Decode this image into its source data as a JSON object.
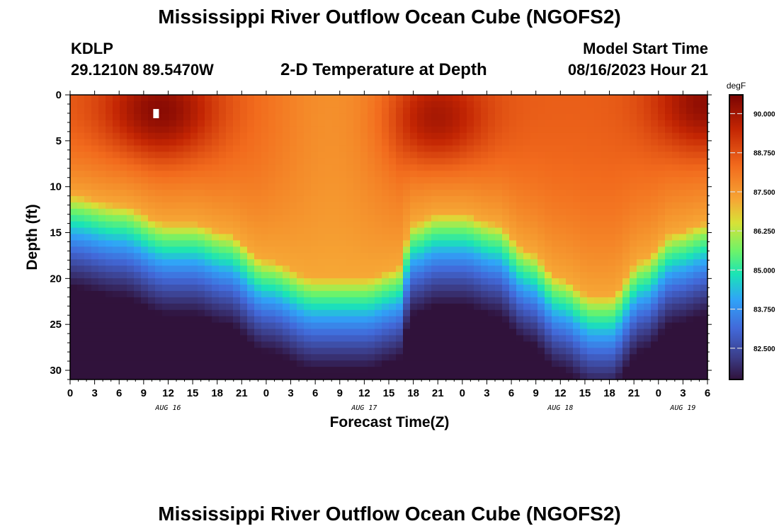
{
  "page": {
    "title": "Mississippi River Outflow Ocean Cube (NGOFS2)",
    "second_title": "Mississippi River Outflow Ocean Cube (NGOFS2)"
  },
  "header": {
    "station": "KDLP",
    "coords": "29.1210N  89.5470W",
    "plot_title": "2-D Temperature at Depth",
    "model_start_label": "Model Start Time",
    "model_start_value": "08/16/2023 Hour 21"
  },
  "chart_data": {
    "type": "heatmap",
    "title": "2-D Temperature at Depth",
    "xlabel": "Forecast Time(Z)",
    "ylabel": "Depth (ft)",
    "x_range_hours": [
      0,
      78
    ],
    "x_tick_labels": [
      "0",
      "3",
      "6",
      "9",
      "12",
      "15",
      "18",
      "21",
      "0",
      "3",
      "6",
      "9",
      "12",
      "15",
      "18",
      "21",
      "0",
      "3",
      "6",
      "9",
      "12",
      "15",
      "18",
      "21",
      "0",
      "3",
      "6"
    ],
    "date_labels": [
      {
        "label": "AUG 16",
        "hour": 12
      },
      {
        "label": "AUG 17",
        "hour": 36
      },
      {
        "label": "AUG 18",
        "hour": 60
      },
      {
        "label": "AUG 19",
        "hour": 75
      }
    ],
    "y_range_ft": [
      0,
      31
    ],
    "y_tick_labels": [
      "0",
      "5",
      "10",
      "15",
      "20",
      "25",
      "30"
    ],
    "y_tick_values": [
      0,
      5,
      10,
      15,
      20,
      25,
      30
    ],
    "colorbar": {
      "unit": "degF",
      "range": [
        81.5,
        90.6
      ],
      "tick_labels": [
        "90.000",
        "88.750",
        "87.500",
        "86.250",
        "85.000",
        "83.750",
        "82.500"
      ],
      "tick_values": [
        90.0,
        88.75,
        87.5,
        86.25,
        85.0,
        83.75,
        82.5
      ]
    },
    "thermocline_depth_ft_by_hour": [
      {
        "hour": 0,
        "depth": 11
      },
      {
        "hour": 6,
        "depth": 12
      },
      {
        "hour": 12,
        "depth": 14
      },
      {
        "hour": 15,
        "depth": 14
      },
      {
        "hour": 19,
        "depth": 15
      },
      {
        "hour": 24,
        "depth": 18
      },
      {
        "hour": 30,
        "depth": 20
      },
      {
        "hour": 36,
        "depth": 20
      },
      {
        "hour": 40,
        "depth": 19
      },
      {
        "hour": 42,
        "depth": 14
      },
      {
        "hour": 45,
        "depth": 13
      },
      {
        "hour": 48,
        "depth": 13
      },
      {
        "hour": 52,
        "depth": 14
      },
      {
        "hour": 56,
        "depth": 17
      },
      {
        "hour": 60,
        "depth": 20
      },
      {
        "hour": 64,
        "depth": 22
      },
      {
        "hour": 66,
        "depth": 22
      },
      {
        "hour": 70,
        "depth": 18
      },
      {
        "hour": 74,
        "depth": 15
      },
      {
        "hour": 78,
        "depth": 14
      }
    ],
    "warm_cores": [
      {
        "hour": 11,
        "depth": 2,
        "value": 90.4
      },
      {
        "hour": 44,
        "depth": 3,
        "value": 90.2
      },
      {
        "hour": 78,
        "depth": 1,
        "value": 90.3
      }
    ],
    "cool_surface_zone": {
      "hour_start": 24,
      "hour_end": 40,
      "value": 87.6
    },
    "marker": {
      "hour": 10,
      "depth": 2
    }
  }
}
